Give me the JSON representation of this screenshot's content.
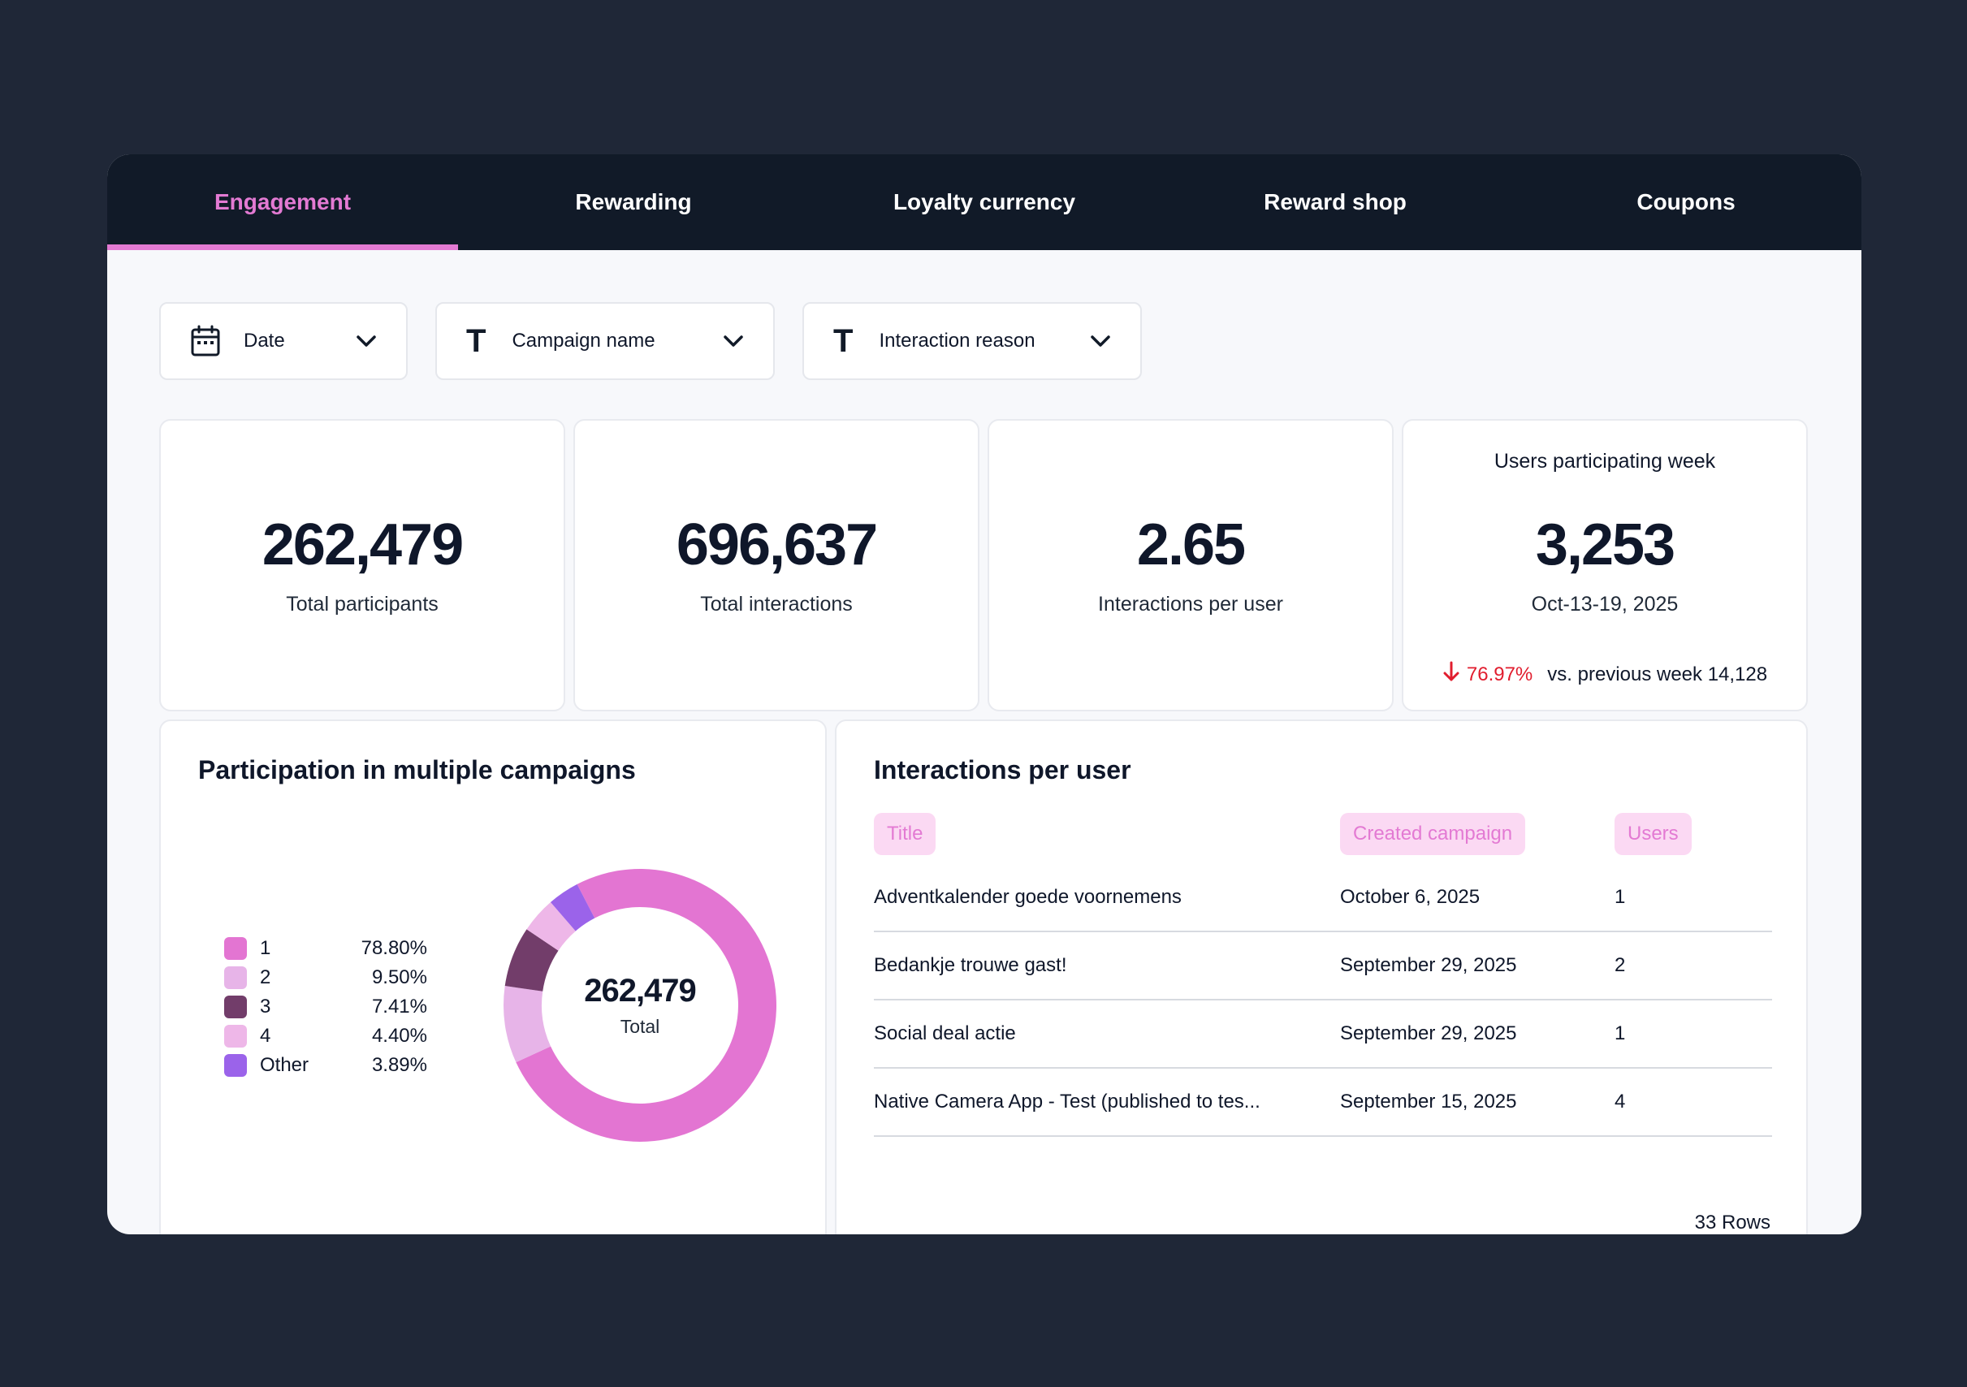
{
  "tabs": [
    {
      "label": "Engagement",
      "active": true
    },
    {
      "label": "Rewarding"
    },
    {
      "label": "Loyalty currency"
    },
    {
      "label": "Reward shop"
    },
    {
      "label": "Coupons"
    }
  ],
  "filters": {
    "date": {
      "label": "Date",
      "icon": "calendar-icon"
    },
    "campaign": {
      "label": "Campaign name",
      "icon": "text-type-icon"
    },
    "reason": {
      "label": "Interaction reason",
      "icon": "text-type-icon"
    }
  },
  "kpis": {
    "participants": {
      "value": "262,479",
      "label": "Total participants"
    },
    "interactions": {
      "value": "696,637",
      "label": "Total interactions"
    },
    "per_user": {
      "value": "2.65",
      "label": "Interactions per user"
    },
    "weekly": {
      "title": "Users participating week",
      "value": "3,253",
      "period": "Oct-13-19, 2025",
      "delta_pct": "76.97%",
      "delta_text": "vs. previous week 14,128",
      "delta_direction": "down"
    }
  },
  "participation": {
    "title": "Participation in multiple campaigns",
    "total_value": "262,479",
    "total_label": "Total"
  },
  "chart_data": {
    "type": "pie",
    "donut": true,
    "categories": [
      "1",
      "2",
      "3",
      "4",
      "Other"
    ],
    "values": [
      78.8,
      9.5,
      7.41,
      4.4,
      3.89
    ],
    "labels": [
      "78.80%",
      "9.50%",
      "7.41%",
      "4.40%",
      "3.89%"
    ],
    "colors": [
      "#e375d2",
      "#e7b4e8",
      "#723d6a",
      "#eeb7e8",
      "#9b63ea"
    ],
    "legend": "left"
  },
  "interactions_table": {
    "title": "Interactions per user",
    "columns": [
      "Title",
      "Created campaign",
      "Users"
    ],
    "rows": [
      [
        "Adventkalender goede voornemens",
        "October 6, 2025",
        "1"
      ],
      [
        "Bedankje trouwe gast!",
        "September 29, 2025",
        "2"
      ],
      [
        "Social deal actie",
        "September 29, 2025",
        "1"
      ],
      [
        "Native Camera App - Test (published to tes...",
        "September 15, 2025",
        "4"
      ]
    ],
    "row_count": "33 Rows"
  },
  "colors": {
    "accent": "#e37ad3",
    "tabbar": "#111a28",
    "background": "#1f2737",
    "negative": "#e11d2e"
  }
}
